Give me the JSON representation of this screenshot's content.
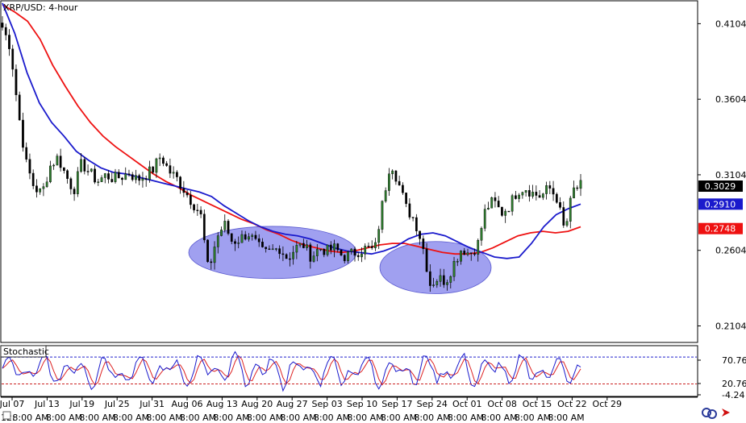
{
  "chart_data": [
    {
      "type": "candlestick",
      "title": "XRP/USD: 4-hour",
      "y_ticks": [
        0.2104,
        0.2604,
        0.3104,
        0.3604,
        0.4104
      ],
      "ylim": [
        0.2,
        0.425
      ],
      "last_price": 0.3029,
      "price_tag_colors": {
        "last": "#000000",
        "ma_fast": "#1a1acc",
        "ma_slow": "#ee1111"
      },
      "series": [
        {
          "name": "price",
          "color": "#0a5a0a",
          "values": [
            0.408,
            0.395,
            0.352,
            0.318,
            0.302,
            0.298,
            0.316,
            0.322,
            0.31,
            0.3,
            0.318,
            0.312,
            0.306,
            0.31,
            0.308,
            0.309,
            0.312,
            0.307,
            0.31,
            0.314,
            0.323,
            0.313,
            0.308,
            0.3,
            0.292,
            0.285,
            0.246,
            0.268,
            0.278,
            0.266,
            0.268,
            0.272,
            0.265,
            0.258,
            0.26,
            0.262,
            0.255,
            0.262,
            0.264,
            0.256,
            0.262,
            0.26,
            0.262,
            0.256,
            0.258,
            0.26,
            0.262,
            0.26,
            0.292,
            0.32,
            0.305,
            0.288,
            0.281,
            0.265,
            0.238,
            0.242,
            0.24,
            0.252,
            0.262,
            0.258,
            0.264,
            0.288,
            0.293,
            0.285,
            0.29,
            0.3,
            0.302,
            0.298,
            0.296,
            0.302,
            0.295,
            0.272,
            0.3,
            0.303
          ]
        },
        {
          "name": "ma_fast",
          "color": "#1a1acc",
          "values": [
            0.424,
            0.404,
            0.378,
            0.358,
            0.345,
            0.336,
            0.326,
            0.32,
            0.315,
            0.312,
            0.311,
            0.309,
            0.307,
            0.305,
            0.303,
            0.301,
            0.299,
            0.296,
            0.29,
            0.285,
            0.28,
            0.276,
            0.273,
            0.271,
            0.27,
            0.268,
            0.265,
            0.262,
            0.26,
            0.259,
            0.258,
            0.26,
            0.263,
            0.268,
            0.271,
            0.272,
            0.27,
            0.266,
            0.262,
            0.259,
            0.256,
            0.255,
            0.256,
            0.265,
            0.276,
            0.284,
            0.288,
            0.291
          ]
        },
        {
          "name": "ma_slow",
          "color": "#ee1111",
          "values": [
            0.423,
            0.418,
            0.412,
            0.4,
            0.383,
            0.369,
            0.356,
            0.345,
            0.336,
            0.329,
            0.323,
            0.317,
            0.311,
            0.306,
            0.302,
            0.297,
            0.293,
            0.289,
            0.285,
            0.281,
            0.278,
            0.274,
            0.271,
            0.267,
            0.264,
            0.262,
            0.26,
            0.259,
            0.26,
            0.262,
            0.264,
            0.265,
            0.265,
            0.263,
            0.261,
            0.259,
            0.258,
            0.258,
            0.259,
            0.262,
            0.266,
            0.27,
            0.272,
            0.273,
            0.272,
            0.273,
            0.276
          ]
        }
      ],
      "annotations": [
        {
          "type": "ellipse",
          "color": "#7b7bea",
          "x_range": [
            "Aug 13",
            "Sep 13"
          ],
          "y_range": [
            0.246,
            0.272
          ]
        },
        {
          "type": "ellipse",
          "color": "#7b7bea",
          "x_range": [
            "Sep 20",
            "Oct 04"
          ],
          "y_range": [
            0.236,
            0.262
          ]
        }
      ]
    },
    {
      "type": "line",
      "title": "Stochastic",
      "y_ticks": [
        70.76,
        20.76,
        -4.24
      ],
      "levels": [
        80,
        20
      ],
      "series": [
        {
          "name": "k",
          "color": "#1a1acc"
        },
        {
          "name": "d",
          "color": "#dd2222"
        }
      ]
    }
  ],
  "x_axis": {
    "date_labels": [
      "Jul 07",
      "Jul 13",
      "Jul 19",
      "Jul 25",
      "Jul 31",
      "Aug 06",
      "Aug 13",
      "Aug 20",
      "Aug 27",
      "Sep 03",
      "Sep 10",
      "Sep 17",
      "Sep 24",
      "Oct 01",
      "Oct 08",
      "Oct 15",
      "Oct 22",
      "Oct 29"
    ],
    "time_label": "8:00 AM",
    "left_label": "12:"
  },
  "icons": [
    "refresh-icon",
    "arrow-icon",
    "toggle-icon"
  ]
}
